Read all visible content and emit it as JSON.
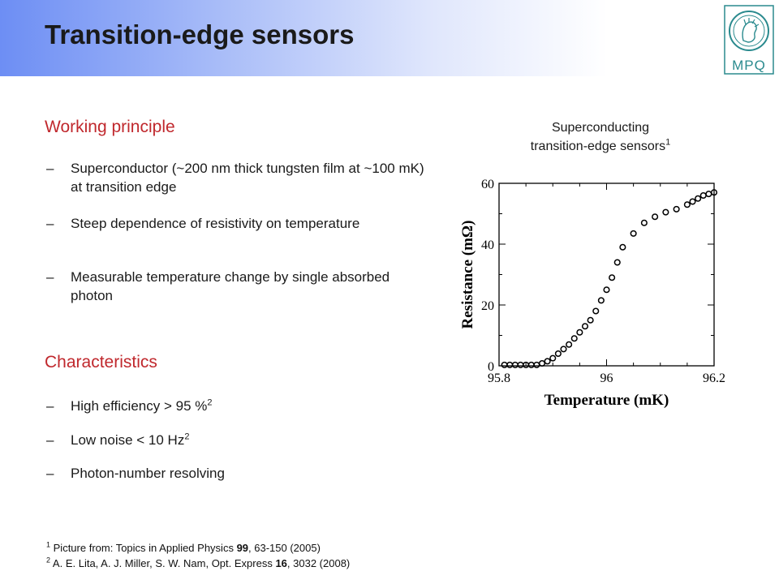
{
  "slide": {
    "title": "Transition-edge sensors",
    "logo_text": "MPQ"
  },
  "working_principle": {
    "heading": "Working principle",
    "bullets": [
      {
        "dash": "–",
        "text": "Superconductor (~200 nm thick tungsten film at ~100 mK) at transition edge"
      },
      {
        "dash": "–",
        "text": "Steep dependence of resistivity on temperature"
      },
      {
        "dash": "–",
        "text": "Measurable temperature change by single absorbed photon"
      }
    ]
  },
  "characteristics": {
    "heading": "Characteristics",
    "bullets": [
      {
        "dash": "–",
        "text": "High efficiency > 95 %",
        "sup": "2"
      },
      {
        "dash": "–",
        "text": "Low noise < 10 Hz",
        "sup": "2"
      },
      {
        "dash": "–",
        "text": "Photon-number resolving"
      }
    ]
  },
  "figure": {
    "caption_line1": "Superconducting",
    "caption_line2": "transition-edge sensors",
    "caption_sup": "1"
  },
  "footnotes": [
    {
      "sup": "1",
      "pre": "Picture from: Topics in Applied Physics ",
      "bold": "99",
      "post": ", 63-150 (2005)"
    },
    {
      "sup": "2",
      "pre": "A. E. Lita, A. J. Miller, S. W. Nam, Opt. Express ",
      "bold": "16",
      "post": ", 3032 (2008)"
    }
  ],
  "colors": {
    "heading_red": "#c0282d",
    "logo_teal": "#2a8a8e",
    "header_blue": "#6d8ef4"
  },
  "chart_data": {
    "type": "scatter",
    "title": "",
    "xlabel": "Temperature (mK)",
    "ylabel": "Resistance (mΩ)",
    "xlim": [
      95.8,
      96.2
    ],
    "ylim": [
      0,
      60
    ],
    "xticks": [
      "95.8",
      "96",
      "96.2"
    ],
    "yticks": [
      "0",
      "20",
      "40",
      "60"
    ],
    "grid": false,
    "marker": "open-circle",
    "points": [
      [
        95.81,
        0.3
      ],
      [
        95.82,
        0.3
      ],
      [
        95.83,
        0.3
      ],
      [
        95.84,
        0.3
      ],
      [
        95.85,
        0.3
      ],
      [
        95.86,
        0.3
      ],
      [
        95.87,
        0.3
      ],
      [
        95.88,
        0.8
      ],
      [
        95.89,
        1.5
      ],
      [
        95.9,
        2.5
      ],
      [
        95.91,
        4
      ],
      [
        95.92,
        5.5
      ],
      [
        95.93,
        7
      ],
      [
        95.94,
        9
      ],
      [
        95.95,
        11
      ],
      [
        95.96,
        13
      ],
      [
        95.97,
        15
      ],
      [
        95.98,
        18
      ],
      [
        95.99,
        21.5
      ],
      [
        96.0,
        25
      ],
      [
        96.01,
        29
      ],
      [
        96.02,
        34
      ],
      [
        96.03,
        39
      ],
      [
        96.05,
        43.5
      ],
      [
        96.07,
        47
      ],
      [
        96.09,
        49
      ],
      [
        96.11,
        50.5
      ],
      [
        96.13,
        51.5
      ],
      [
        96.15,
        53
      ],
      [
        96.16,
        54
      ],
      [
        96.17,
        55
      ],
      [
        96.18,
        56
      ],
      [
        96.19,
        56.5
      ],
      [
        96.2,
        57
      ]
    ]
  }
}
